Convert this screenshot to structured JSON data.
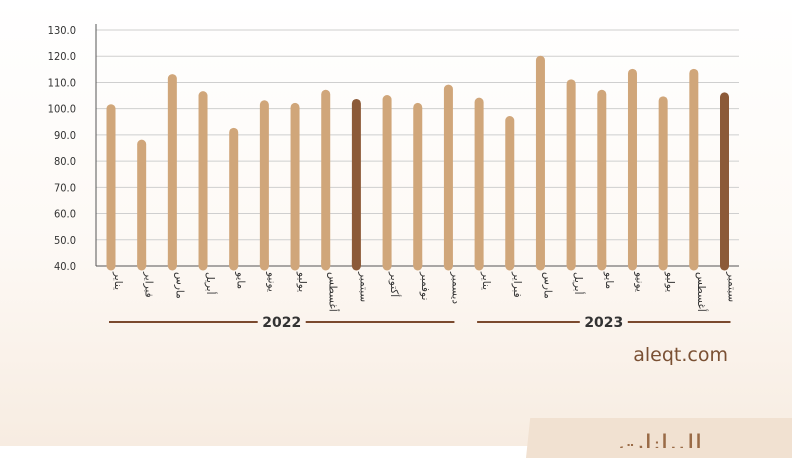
{
  "chart_data": {
    "type": "bar",
    "categories": [
      "يناير",
      "فبراير",
      "مارس",
      "أبريل",
      "مايو",
      "يونيو",
      "يوليو",
      "أغسطس",
      "سبتمبر",
      "أكتوبر",
      "نوفمبر",
      "ديسمبر",
      "يناير",
      "فبراير",
      "مارس",
      "أبريل",
      "مايو",
      "يونيو",
      "يوليو",
      "أغسطس",
      "سبتمبر"
    ],
    "values": [
      101.5,
      88.0,
      113.0,
      106.5,
      92.5,
      103.0,
      102.0,
      107.0,
      103.5,
      105.0,
      102.0,
      109.0,
      104.0,
      97.0,
      120.0,
      111.0,
      107.0,
      115.0,
      104.5,
      115.0,
      106.0
    ],
    "groups": [
      {
        "label": "2022",
        "start": 0,
        "end": 11
      },
      {
        "label": "2023",
        "start": 12,
        "end": 20
      }
    ],
    "highlight_indices": [
      8,
      20
    ],
    "yticks": [
      "40.0",
      "50.0",
      "60.0",
      "70.0",
      "80.0",
      "90.0",
      "100.0",
      "110.0",
      "120.0",
      "130.0"
    ],
    "ylim": [
      40,
      130
    ],
    "grid": true,
    "colors": {
      "bar": "#d0a67a",
      "highlight": "#8c5a38",
      "axis": "#555555",
      "grid": "#cfcfcf",
      "group_line": "#7a4a2e"
    }
  },
  "source": "aleqt.com",
  "corner_text": "البيانات"
}
